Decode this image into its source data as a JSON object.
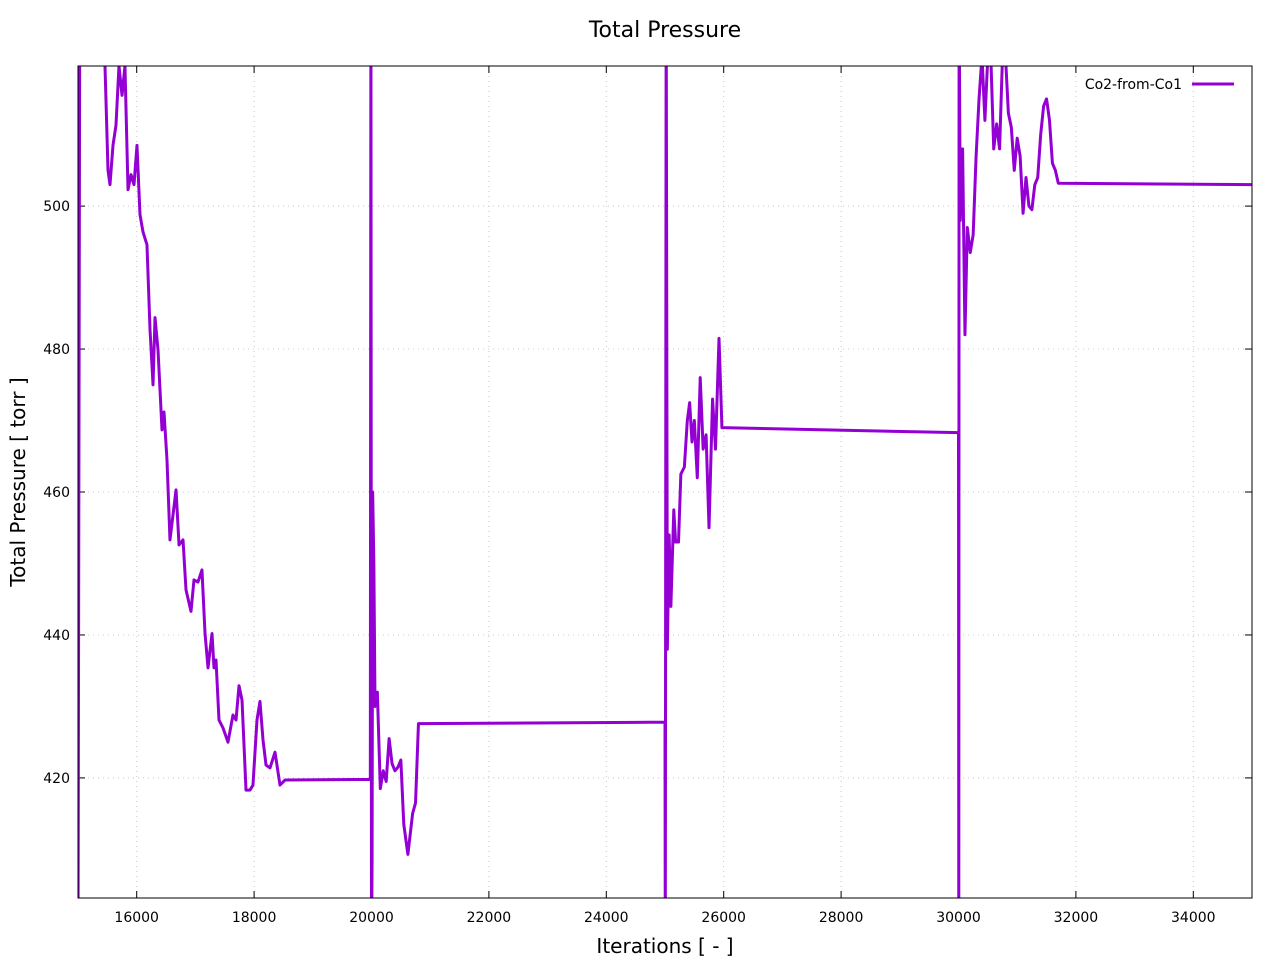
{
  "chart_data": {
    "type": "line",
    "title": "Total Pressure",
    "x_label": "Iterations [ - ]",
    "y_label": "Total Pressure [ torr ]",
    "xlim": [
      15000,
      35000
    ],
    "ylim": [
      403.2,
      519.6
    ],
    "xticks": [
      16000,
      18000,
      20000,
      22000,
      24000,
      26000,
      28000,
      30000,
      32000,
      34000
    ],
    "yticks": [
      420,
      440,
      460,
      480,
      500
    ],
    "grid": true,
    "legend": "top-right",
    "x": [
      15000,
      15030,
      15460,
      15511,
      15545,
      15596,
      15647,
      15698,
      15750,
      15800,
      15852,
      15903,
      15954,
      16005,
      16056,
      16107,
      16175,
      16227,
      16278,
      16312,
      16363,
      16431,
      16465,
      16516,
      16567,
      16670,
      16721,
      16789,
      16840,
      16925,
      16976,
      17044,
      17112,
      17164,
      17215,
      17283,
      17317,
      17351,
      17402,
      17470,
      17555,
      17640,
      17692,
      17743,
      17794,
      17862,
      17930,
      17981,
      18049,
      18100,
      18152,
      18203,
      18271,
      18356,
      18441,
      18526,
      19980,
      19990,
      20000,
      20010,
      20020,
      20040,
      20060,
      20100,
      20150,
      20200,
      20250,
      20300,
      20350,
      20400,
      20450,
      20500,
      20550,
      20620,
      20700,
      20750,
      20800,
      25000,
      25005,
      25020,
      25040,
      25070,
      25100,
      25150,
      25180,
      25230,
      25270,
      25330,
      25380,
      25420,
      25460,
      25500,
      25550,
      25600,
      25650,
      25700,
      25750,
      25810,
      25860,
      25920,
      25970,
      30000,
      30005,
      30010,
      30030,
      30070,
      30110,
      30150,
      30200,
      30250,
      30300,
      30350,
      30400,
      30450,
      30500,
      30550,
      30600,
      30650,
      30700,
      30750,
      30800,
      30850,
      30900,
      30950,
      31000,
      31050,
      31100,
      31150,
      31200,
      31250,
      31300,
      31350,
      31400,
      31450,
      31500,
      31550,
      31600,
      31650,
      31700,
      35000
    ],
    "series": [
      {
        "name": "Co2-from-Co1",
        "color": "#9400d3",
        "values": [
          395,
          530,
          519.6,
          505,
          503,
          508.5,
          511.3,
          519.6,
          515.5,
          519.6,
          502.3,
          504.4,
          503,
          508.5,
          498.8,
          496.4,
          494.6,
          482.7,
          475,
          484.4,
          479.9,
          468.7,
          471.2,
          464.5,
          453.3,
          460.3,
          452.6,
          453.3,
          446.3,
          443.3,
          447.7,
          447.4,
          449.1,
          440.2,
          435.4,
          440.2,
          435.4,
          436.5,
          428.1,
          427,
          425,
          428.8,
          428.1,
          432.9,
          430.9,
          418.3,
          418.3,
          419,
          428.1,
          430.7,
          425.3,
          421.8,
          421.4,
          423.6,
          419,
          419.7,
          419.8,
          530,
          395,
          409,
          460,
          450,
          430,
          432,
          418.5,
          421,
          419.5,
          425.5,
          422,
          421,
          421.5,
          422.5,
          413.5,
          409.3,
          415,
          416.5,
          427.6,
          427.8,
          395,
          530,
          438,
          454,
          444,
          457.5,
          453,
          453,
          462.5,
          463.5,
          470,
          472.5,
          467,
          470,
          462,
          476,
          466,
          468,
          455,
          473,
          466,
          481.5,
          469,
          468.3,
          395,
          530,
          498,
          508,
          482,
          497,
          493.5,
          496,
          507,
          515,
          521,
          512,
          521,
          521,
          508,
          511.5,
          508,
          521,
          521,
          513,
          511,
          505,
          509.5,
          507,
          499,
          504,
          500,
          499.5,
          503,
          504,
          510,
          514,
          515,
          512,
          506,
          505,
          503.2,
          503
        ]
      }
    ]
  }
}
